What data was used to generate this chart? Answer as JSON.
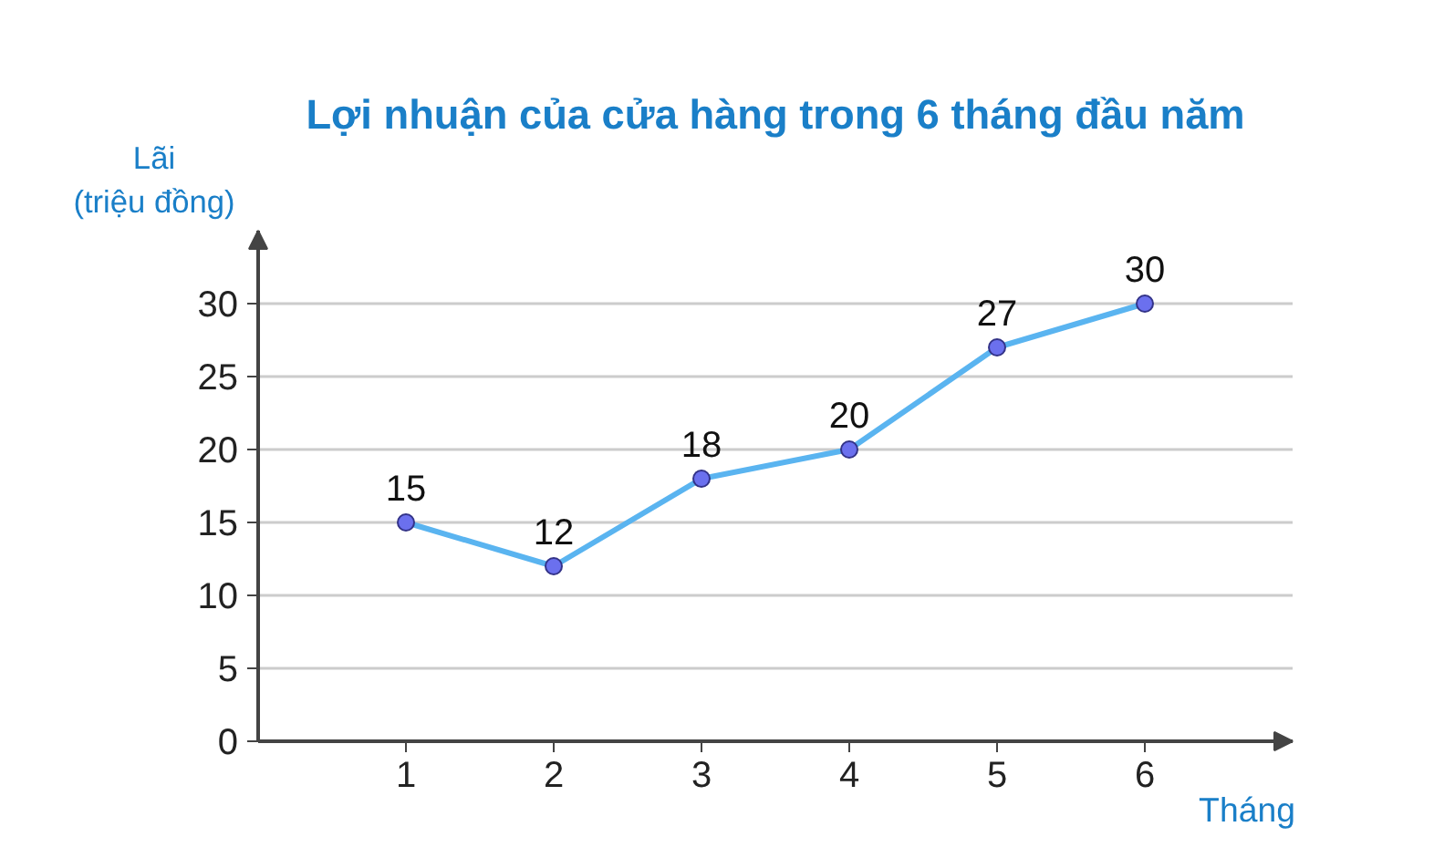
{
  "chart_data": {
    "type": "line",
    "title": "Lợi nhuận của cửa hàng trong 6 tháng đầu năm",
    "xlabel": "Tháng",
    "ylabel": "Lãi\n(triệu đồng)",
    "x": [
      1,
      2,
      3,
      4,
      5,
      6
    ],
    "series": [
      {
        "color": "#5ab4f0",
        "values": [
          15,
          12,
          18,
          20,
          27,
          30
        ]
      }
    ],
    "xlim": [
      0,
      7
    ],
    "ylim": [
      0,
      35
    ],
    "xticks": [
      1,
      2,
      3,
      4,
      5,
      6
    ],
    "yticks": [
      0,
      5,
      10,
      15,
      20,
      25,
      30
    ],
    "grid": "y",
    "marker": "circle",
    "line_style": "solid",
    "data_labels": true
  }
}
